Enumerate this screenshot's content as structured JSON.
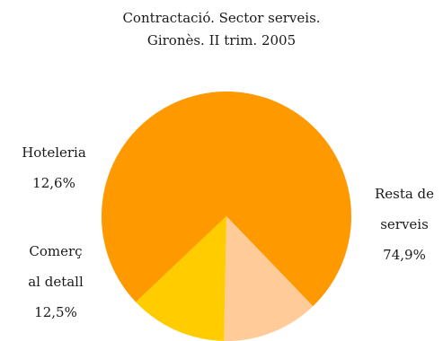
{
  "chart_data": {
    "type": "pie",
    "title": "Contractació. Sector serveis.",
    "subtitle": "Gironès. II trim. 2005",
    "slices": [
      {
        "name": "Resta de serveis",
        "label_lines": [
          "Resta de",
          "serveis"
        ],
        "value": 74.9,
        "value_label": "74,9%",
        "color": "#ff9900"
      },
      {
        "name": "Comerç al detall",
        "label_lines": [
          "Comerç",
          "al detall"
        ],
        "value": 12.5,
        "value_label": "12,5%",
        "color": "#ffcc99"
      },
      {
        "name": "Hoteleria",
        "label_lines": [
          "Hoteleria"
        ],
        "value": 12.6,
        "value_label": "12,6%",
        "color": "#ffcc00"
      }
    ],
    "legend": "none"
  }
}
